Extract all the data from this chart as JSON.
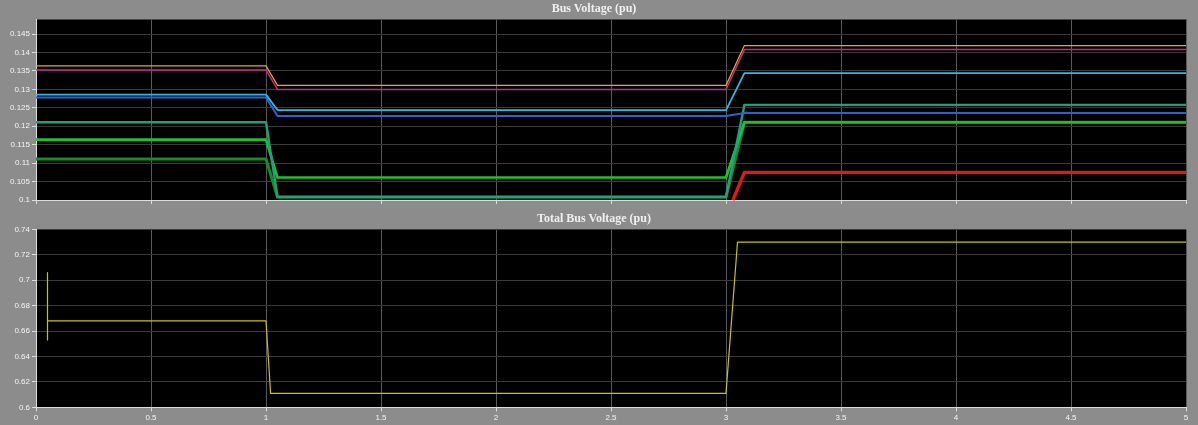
{
  "chart_data": [
    {
      "type": "line",
      "title": "Bus Voltage (pu)",
      "x": [
        0,
        1,
        1.05,
        3,
        3.08,
        5
      ],
      "xlim": [
        0,
        5
      ],
      "xticks": [
        0,
        0.5,
        1,
        1.5,
        2,
        2.5,
        3,
        3.5,
        4,
        4.5,
        5
      ],
      "ylim": [
        0.1,
        0.149
      ],
      "yticks": [
        0.1,
        0.105,
        0.11,
        0.115,
        0.12,
        0.125,
        0.13,
        0.135,
        0.14,
        0.145
      ],
      "grid": true,
      "legend": false,
      "tick_labels": "y",
      "marker": "none",
      "line_style": "solid",
      "series": [
        {
          "color": "#f0a040",
          "values": [
            0.1364,
            0.1364,
            0.1311,
            0.1311,
            0.1419,
            0.1419
          ]
        },
        {
          "color": "#c03080",
          "values": [
            0.1353,
            0.1353,
            0.13,
            0.13,
            0.1408,
            0.1408
          ]
        },
        {
          "color": "#30b8e0",
          "values": [
            0.1286,
            0.1286,
            0.1244,
            0.1244,
            0.1344,
            0.1344
          ]
        },
        {
          "color": "#3060c8",
          "values": [
            0.1278,
            0.1278,
            0.1228,
            0.1228,
            0.1236,
            0.1236
          ]
        },
        {
          "color": "#20a080",
          "values": [
            0.1211,
            0.1211,
            0.1008,
            0.1008,
            0.1258,
            0.1258
          ]
        },
        {
          "color": "#20c030",
          "values": [
            0.1164,
            0.1164,
            0.1061,
            0.1061,
            0.1211,
            0.1211
          ]
        },
        {
          "color": "#109020",
          "values": [
            0.1111,
            0.1111,
            0.1008,
            0.1008,
            0.1211,
            0.1211
          ]
        },
        {
          "color": "#e01818",
          "x": [
            3.03,
            3.08,
            5
          ],
          "values": [
            0.1,
            0.1075,
            0.1075
          ]
        }
      ]
    },
    {
      "type": "line",
      "title": "Total Bus Voltage (pu)",
      "x": [
        0.05,
        0.05,
        0.05,
        1,
        1.02,
        3,
        3.05,
        5
      ],
      "xlim": [
        0,
        5
      ],
      "xticks": [
        0,
        0.5,
        1,
        1.5,
        2,
        2.5,
        3,
        3.5,
        4,
        4.5,
        5
      ],
      "ylim": [
        0.6,
        0.74
      ],
      "yticks": [
        0.6,
        0.62,
        0.64,
        0.66,
        0.68,
        0.7,
        0.72,
        0.74
      ],
      "grid": true,
      "legend": false,
      "marker": "none",
      "line_style": "solid",
      "series": [
        {
          "color": "#c8c020",
          "values": [
            0.706,
            0.653,
            0.668,
            0.668,
            0.611,
            0.611,
            0.73,
            0.73
          ]
        }
      ]
    }
  ]
}
